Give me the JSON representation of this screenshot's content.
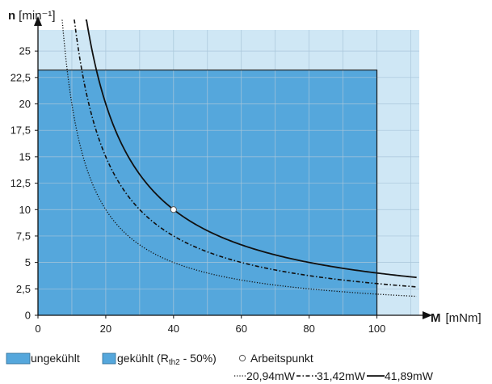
{
  "chart_data": {
    "type": "line",
    "x_axis": {
      "symbol": "M",
      "unit": "[mNm]",
      "range": [
        0,
        112.5
      ],
      "ticks": [
        0,
        20,
        40,
        60,
        80,
        100
      ],
      "tick_labels": [
        "0",
        "20",
        "40",
        "60",
        "80",
        "100"
      ]
    },
    "y_axis": {
      "symbol": "n",
      "unit": "[min⁻¹]",
      "range": [
        0,
        27
      ],
      "ticks": [
        0,
        2.5,
        5,
        7.5,
        10,
        12.5,
        15,
        17.5,
        20,
        22.5,
        25
      ],
      "tick_labels": [
        "0",
        "2,5",
        "5",
        "7,5",
        "10",
        "12,5",
        "15",
        "17,5",
        "20",
        "22,5",
        "25"
      ]
    },
    "grid": true,
    "regions": [
      {
        "key": "gekuehlt",
        "x_max": 112.5,
        "y_max": 27,
        "color": "#cfe7f5"
      },
      {
        "key": "ungekuehlt",
        "x_max": 100,
        "y_max": 23.2,
        "color": "#55a7dc"
      }
    ],
    "series": [
      {
        "name": "20,94mW",
        "style": "dotted",
        "power_mW": 20.94
      },
      {
        "name": "31,42mW",
        "style": "dashed",
        "power_mW": 31.42
      },
      {
        "name": "41,89mW",
        "style": "solid",
        "power_mW": 41.89
      }
    ],
    "operating_point": {
      "x": 40,
      "y": 10
    },
    "legend": {
      "ungekuehlt": "ungekühlt",
      "gekuehlt_prefix": "gekühlt (R",
      "gekuehlt_sub": "th2",
      "gekuehlt_suffix": " - 50%)",
      "arbeitspunkt": "Arbeitspunkt",
      "placement": "bottom"
    },
    "colors": {
      "ungekuehlt": "#55a7dc",
      "gekuehlt": "#cfe7f5",
      "grid": "#a9c6da",
      "curve": "#111111",
      "axis": "#111111"
    }
  }
}
